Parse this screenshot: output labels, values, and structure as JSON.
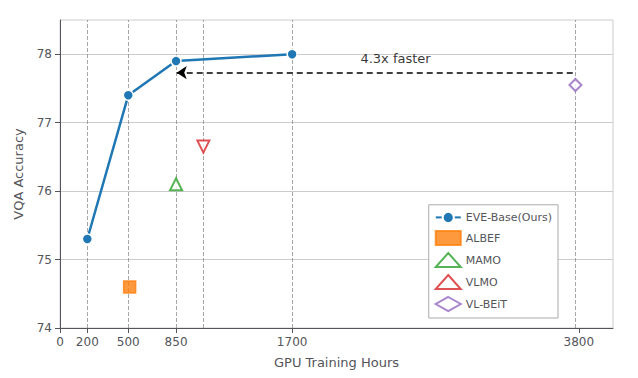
{
  "chart_data": {
    "type": "line",
    "xlabel": "GPU Training Hours",
    "ylabel": "VQA Accuracy",
    "xlim": [
      0,
      4050
    ],
    "ylim": [
      74,
      78.5
    ],
    "xticks": [
      0,
      200,
      500,
      850,
      1700,
      3800
    ],
    "yticks": [
      74,
      75,
      76,
      77,
      78
    ],
    "grid": "y",
    "legend": "lower right",
    "series": [
      {
        "name": "EVE-Base(Ours)",
        "type": "line",
        "marker": "circle",
        "color": "#1f77b4",
        "x": [
          200,
          500,
          850,
          1700
        ],
        "values": [
          75.3,
          77.4,
          77.9,
          78.0
        ]
      },
      {
        "name": "ALBEF",
        "type": "scatter",
        "marker": "square",
        "color": "#ff7f0e",
        "x": [
          510
        ],
        "values": [
          74.6
        ]
      },
      {
        "name": "MAMO",
        "type": "scatter",
        "marker": "triangle-up-open",
        "color": "#2ca02c",
        "x": [
          850
        ],
        "values": [
          76.1
        ]
      },
      {
        "name": "VLMO",
        "type": "scatter",
        "marker": "triangle-down-open",
        "color": "#d62728",
        "x": [
          1050
        ],
        "values": [
          76.65
        ]
      },
      {
        "name": "VL-BEiT",
        "type": "scatter",
        "marker": "diamond-open",
        "color": "#9467bd",
        "x": [
          3775
        ],
        "values": [
          77.55
        ]
      }
    ],
    "vlines": [
      200,
      500,
      850,
      1050,
      1700,
      3775
    ],
    "arrow": {
      "x": [
        855,
        3775
      ],
      "y": 77.73
    },
    "annotations": [
      {
        "text": "4.3x faster",
        "x": 2200,
        "y": 77.82
      }
    ]
  }
}
